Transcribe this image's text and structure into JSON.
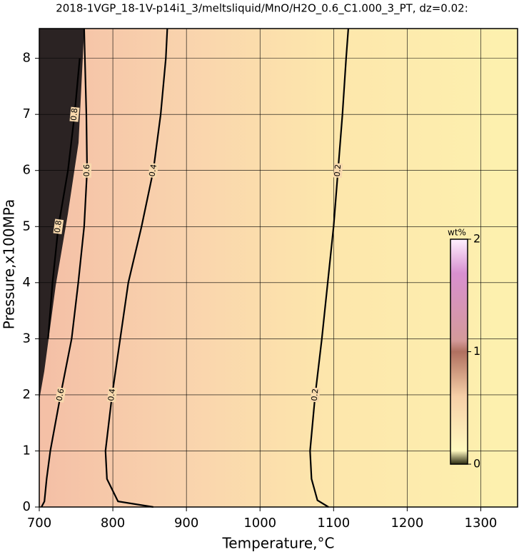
{
  "chart_data": {
    "type": "contour",
    "title": "2018-1VGP_18-1V-p14i1_3/meltsliquid/MnO/H2O_0.6_C1.000_3_PT, dz=0.02:",
    "x_label": "Temperature,°C",
    "y_label": "Pressure,x100MPa",
    "xlim": [
      700,
      1350
    ],
    "xticks": [
      700,
      800,
      900,
      1000,
      1100,
      1200,
      1300
    ],
    "ylim": [
      0,
      8.53
    ],
    "yticks": [
      0,
      1,
      2,
      3,
      4,
      5,
      6,
      7,
      8
    ],
    "grid": true,
    "contours": [
      {
        "level": 0.2,
        "x": [
          1093,
          1078,
          1070,
          1068,
          1075,
          1084,
          1092,
          1100,
          1106,
          1112,
          1117,
          1120
        ],
        "y": [
          0,
          0.12,
          0.5,
          1,
          2,
          3,
          4,
          5,
          6,
          7,
          8,
          8.53
        ]
      },
      {
        "level": 0.4,
        "x": [
          855,
          807,
          792,
          790,
          799,
          810,
          821,
          839,
          855,
          865,
          872,
          874
        ],
        "y": [
          0,
          0.1,
          0.5,
          1,
          2,
          3,
          4,
          5,
          6,
          7,
          8,
          8.53
        ]
      },
      {
        "level": 0.6,
        "x": [
          703,
          707,
          710,
          715,
          729,
          744,
          753,
          761,
          765,
          764,
          762,
          761
        ],
        "y": [
          0,
          0.1,
          0.5,
          1,
          2,
          3,
          4,
          5,
          6,
          7,
          8,
          8.53
        ]
      },
      {
        "level": 0.8,
        "x": [
          712,
          718,
          726,
          739,
          748,
          755
        ],
        "y": [
          3,
          4,
          5,
          6,
          7,
          8
        ]
      }
    ],
    "colorbar": {
      "label": "wt%",
      "lim": [
        0,
        2
      ],
      "ticks": [
        0,
        1,
        2
      ]
    }
  }
}
